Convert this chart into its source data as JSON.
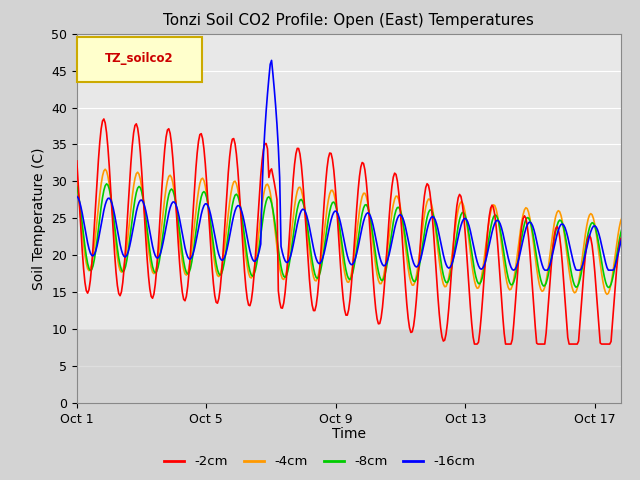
{
  "title": "Tonzi Soil CO2 Profile: Open (East) Temperatures",
  "xlabel": "Time",
  "ylabel": "Soil Temperature (C)",
  "legend_label": "TZ_soilco2",
  "series_labels": [
    "-2cm",
    "-4cm",
    "-8cm",
    "-16cm"
  ],
  "series_colors": [
    "#ff0000",
    "#ff9900",
    "#00cc00",
    "#0000ff"
  ],
  "ylim": [
    0,
    50
  ],
  "yticks": [
    0,
    5,
    10,
    15,
    20,
    25,
    30,
    35,
    40,
    45,
    50
  ],
  "xtick_labels": [
    "Oct 1",
    "Oct 5",
    "Oct 9",
    "Oct 13",
    "Oct 17"
  ],
  "xtick_positions": [
    0,
    4,
    8,
    12,
    16
  ],
  "plot_bg_color": "#e8e8e8",
  "title_fontsize": 11,
  "axis_label_fontsize": 10,
  "linewidth": 1.2
}
